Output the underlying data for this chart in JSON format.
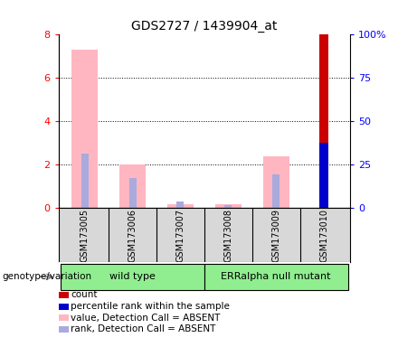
{
  "title": "GDS2727 / 1439904_at",
  "samples": [
    "GSM173005",
    "GSM173006",
    "GSM173007",
    "GSM173008",
    "GSM173009",
    "GSM173010"
  ],
  "pink_bars": [
    7.3,
    2.0,
    0.2,
    0.2,
    2.4,
    0.0
  ],
  "blue_marks": [
    2.5,
    1.4,
    0.3,
    0.15,
    1.55,
    0.0
  ],
  "red_bar_idx": 5,
  "red_bar_val": 8.0,
  "blue_sq_idx": 5,
  "blue_sq_val": 3.0,
  "ylim_left": [
    0,
    8
  ],
  "ylim_right": [
    0,
    100
  ],
  "yticks_left": [
    0,
    2,
    4,
    6,
    8
  ],
  "yticks_right": [
    0,
    25,
    50,
    75,
    100
  ],
  "ytick_labels_right": [
    "0",
    "25",
    "50",
    "75",
    "100%"
  ],
  "group_wt_label": "wild type",
  "group_mut_label": "ERRalpha null mutant",
  "group_label_prefix": "genotype/variation",
  "group_color": "#90ee90",
  "pink_color": "#ffb6c1",
  "blue_color": "#aaaadd",
  "red_color": "#cc0000",
  "dark_blue_color": "#0000cc",
  "bar_width": 0.55,
  "blue_bar_width": 0.15,
  "red_bar_width": 0.18,
  "grid_color": "black",
  "sample_bg_color": "#d8d8d8",
  "plot_bg": "white",
  "legend_items": [
    {
      "color": "#cc0000",
      "label": "count"
    },
    {
      "color": "#0000cc",
      "label": "percentile rank within the sample"
    },
    {
      "color": "#ffb6c1",
      "label": "value, Detection Call = ABSENT"
    },
    {
      "color": "#aaaadd",
      "label": "rank, Detection Call = ABSENT"
    }
  ]
}
